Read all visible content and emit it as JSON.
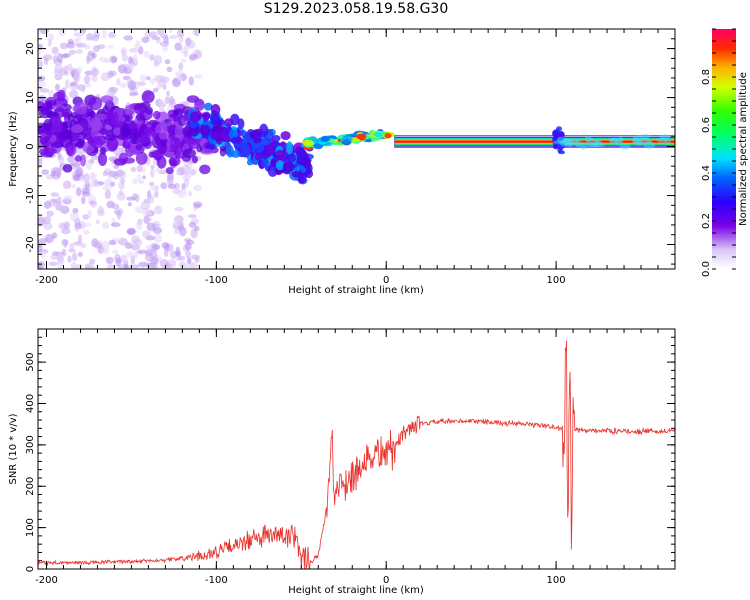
{
  "title": "S129.2023.058.19.58.G30",
  "chart_data": [
    {
      "type": "heatmap",
      "xlabel": "Height of straight line (km)",
      "ylabel": "Frequency (Hz)",
      "xlim": [
        -205,
        170
      ],
      "ylim": [
        -25,
        24
      ],
      "xticks": [
        -200,
        -100,
        0,
        100
      ],
      "yticks": [
        -20,
        -10,
        0,
        10,
        20
      ],
      "colorbar": {
        "label": "Normalized spectral amplitude",
        "range": [
          0.0,
          1.0
        ],
        "ticks": [
          0.0,
          0.2,
          0.4,
          0.6,
          0.8
        ]
      },
      "features": [
        {
          "x_range": [
            -205,
            -120
          ],
          "frequency_range": [
            -25,
            24
          ],
          "amplitude": "low",
          "pattern": "scattered"
        },
        {
          "x_range": [
            -120,
            -45
          ],
          "frequency_range": [
            -12,
            10
          ],
          "amplitude": "medium",
          "pattern": "descending cluster"
        },
        {
          "x_range": [
            -45,
            0
          ],
          "frequency_range": [
            -1,
            3
          ],
          "amplitude": "high",
          "pattern": "converging"
        },
        {
          "x_range": [
            5,
            170
          ],
          "frequency_center": 1,
          "amplitude": "max",
          "pattern": "narrow band"
        },
        {
          "x_range": [
            99,
            104
          ],
          "frequency_range": [
            -2,
            6
          ],
          "amplitude": "medium",
          "pattern": "spike"
        }
      ]
    },
    {
      "type": "line",
      "xlabel": "Height of straight line (km)",
      "ylabel": "SNR (10 * v/v)",
      "xlim": [
        -205,
        170
      ],
      "ylim": [
        0,
        580
      ],
      "xticks": [
        -200,
        -100,
        0,
        100
      ],
      "yticks": [
        0,
        100,
        200,
        300,
        400,
        500
      ],
      "color": "#e8302a",
      "series": [
        {
          "x": [
            -205,
            -180,
            -150,
            -130,
            -110,
            -100,
            -90,
            -80,
            -70,
            -60,
            -55,
            -50,
            -45,
            -40,
            -35,
            -33,
            -32,
            -31,
            -28,
            -25,
            -20,
            -15,
            -10,
            -5,
            0,
            5,
            10,
            15,
            20,
            25,
            30,
            40,
            50,
            60,
            70,
            80,
            90,
            100,
            103,
            105,
            106,
            107,
            108,
            109,
            110,
            112,
            120,
            140,
            160,
            170
          ],
          "y": [
            15,
            15,
            18,
            22,
            30,
            42,
            55,
            70,
            80,
            80,
            75,
            25,
            15,
            35,
            150,
            240,
            340,
            200,
            190,
            210,
            230,
            250,
            270,
            280,
            285,
            290,
            330,
            345,
            350,
            352,
            356,
            356,
            358,
            356,
            352,
            350,
            348,
            342,
            340,
            345,
            550,
            60,
            520,
            80,
            340,
            335,
            335,
            333,
            332,
            333
          ]
        }
      ]
    }
  ]
}
